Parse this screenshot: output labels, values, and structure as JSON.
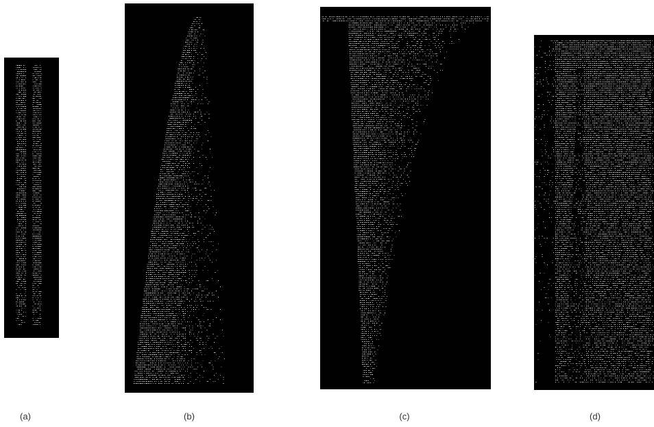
{
  "colors": {
    "background": "#ffffff",
    "panel": "#000000",
    "speckle": "#ffffff"
  },
  "panels": [
    {
      "id": "a",
      "label": "(a)"
    },
    {
      "id": "b",
      "label": "(b)"
    },
    {
      "id": "c",
      "label": "(c)"
    },
    {
      "id": "d",
      "label": "(d)"
    }
  ]
}
